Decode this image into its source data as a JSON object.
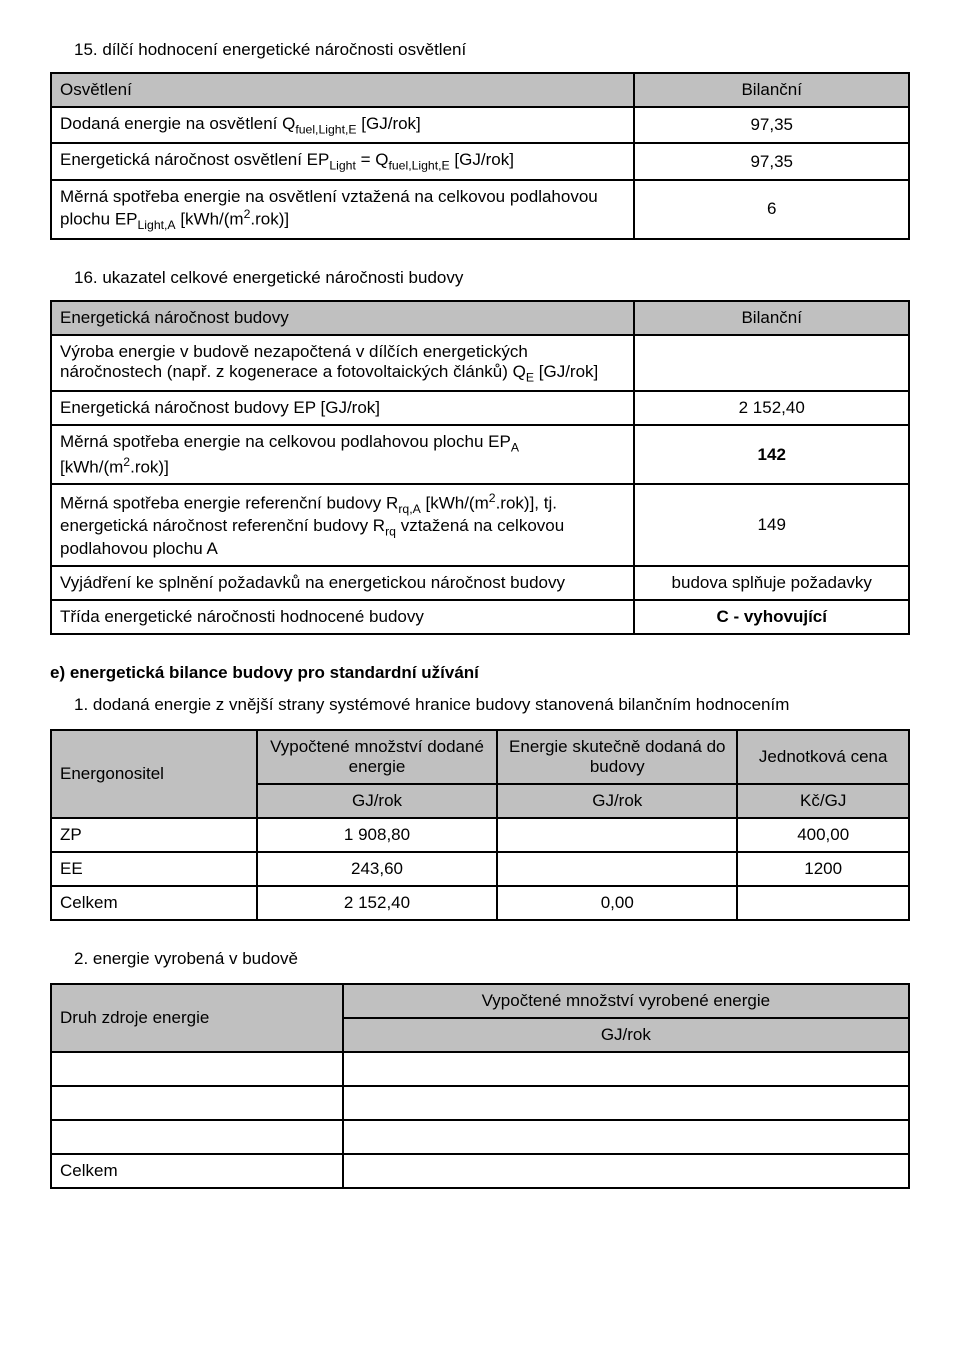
{
  "s15": {
    "title": "15. dílčí hodnocení energetické náročnosti osvětlení",
    "rows": [
      {
        "label": "Osvětlení",
        "value": "Bilanční",
        "labelHeader": true,
        "valueHeader": true
      },
      {
        "label": "Dodaná energie na osvětlení Q<sub>fuel,Light,E</sub> [GJ/rok]",
        "value": "97,35"
      },
      {
        "label": "Energetická náročnost osvětlení EP<sub>Light</sub> = Q<sub>fuel,Light,E</sub> [GJ/rok]",
        "value": "97,35"
      },
      {
        "label": "Měrná spotřeba energie na osvětlení vztažená na celkovou podlahovou plochu EP<sub>Light,A</sub> [kWh/(m<sup>2</sup>.rok)]",
        "value": "6"
      }
    ]
  },
  "s16": {
    "title": "16. ukazatel celkové energetické náročnosti budovy",
    "rows": [
      {
        "label": "Energetická náročnost budovy",
        "value": "Bilanční",
        "labelHeader": true,
        "valueHeader": true
      },
      {
        "label": "Výroba energie v budově nezapočtená v dílčích energetických náročnostech (např. z kogenerace a fotovoltaických článků) Q<sub>E</sub> [GJ/rok]",
        "value": ""
      },
      {
        "label": "Energetická náročnost budovy EP [GJ/rok]",
        "value": "2 152,40"
      },
      {
        "label": "Měrná spotřeba energie na celkovou podlahovou plochu EP<sub>A</sub> [kWh/(m<sup>2</sup>.rok)]",
        "value": "142",
        "boldValue": true
      },
      {
        "label": "Měrná spotřeba energie referenční budovy R<sub>rq,A</sub> [kWh/(m<sup>2</sup>.rok)], tj. energetická náročnost referenční budovy R<sub>rq</sub> vztažená na celkovou podlahovou plochu A",
        "value": "149"
      },
      {
        "label": "Vyjádření ke splnění požadavků na energetickou náročnost budovy",
        "value": "budova splňuje požadavky"
      },
      {
        "label": "Třída energetické náročnosti hodnocené budovy",
        "value": "C - vyhovující",
        "boldValue": true
      }
    ]
  },
  "secE": {
    "heading": "e)  energetická bilance budovy pro standardní užívání",
    "item1": "1.   dodaná energie z vnější strany systémové hranice budovy stanovená bilančním hodnocením",
    "table": {
      "h_energ": "Energonositel",
      "h_qty": "Vypočtené množství dodané energie",
      "h_real": "Energie skutečně dodaná do budovy",
      "h_price": "Jednotková cena",
      "u1": "GJ/rok",
      "u2": "GJ/rok",
      "u3": "Kč/GJ",
      "rows": [
        {
          "c0": "ZP",
          "c1": "1 908,80",
          "c2": "",
          "c3": "400,00"
        },
        {
          "c0": "EE",
          "c1": "243,60",
          "c2": "",
          "c3": "1200"
        },
        {
          "c0": "Celkem",
          "c1": "2 152,40",
          "c2": "0,00",
          "c3": ""
        }
      ]
    },
    "item2": "2.   energie vyrobená v budově",
    "table2": {
      "h_source": "Druh zdroje energie",
      "h_qty": "Vypočtené množství vyrobené energie",
      "unit": "GJ/rok",
      "total": "Celkem"
    }
  }
}
